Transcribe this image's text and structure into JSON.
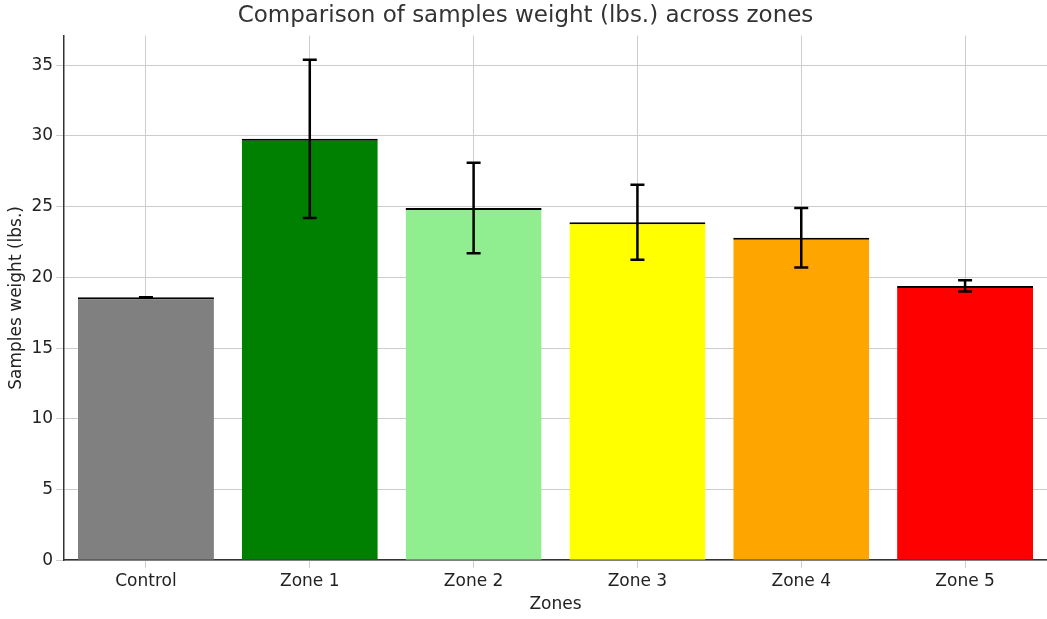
{
  "chart_data": {
    "type": "bar",
    "title": "Comparison of samples weight (lbs.) across zones",
    "xlabel": "Zones",
    "ylabel": "Samples weight (lbs.)",
    "categories": [
      "Control",
      "Zone 1",
      "Zone 2",
      "Zone 3",
      "Zone 4",
      "Zone 5"
    ],
    "values": [
      18.6,
      29.8,
      24.9,
      23.9,
      22.8,
      19.4
    ],
    "colors": [
      "#808080",
      "#008000",
      "#90ee90",
      "#ffff00",
      "#ffa500",
      "#ff0000"
    ],
    "errors": [
      0,
      5.6,
      3.2,
      2.65,
      2.1,
      0.4
    ],
    "ylim": [
      0,
      37.1
    ],
    "yticks": [
      0,
      5,
      10,
      15,
      20,
      25,
      30,
      35
    ],
    "grid": true
  }
}
